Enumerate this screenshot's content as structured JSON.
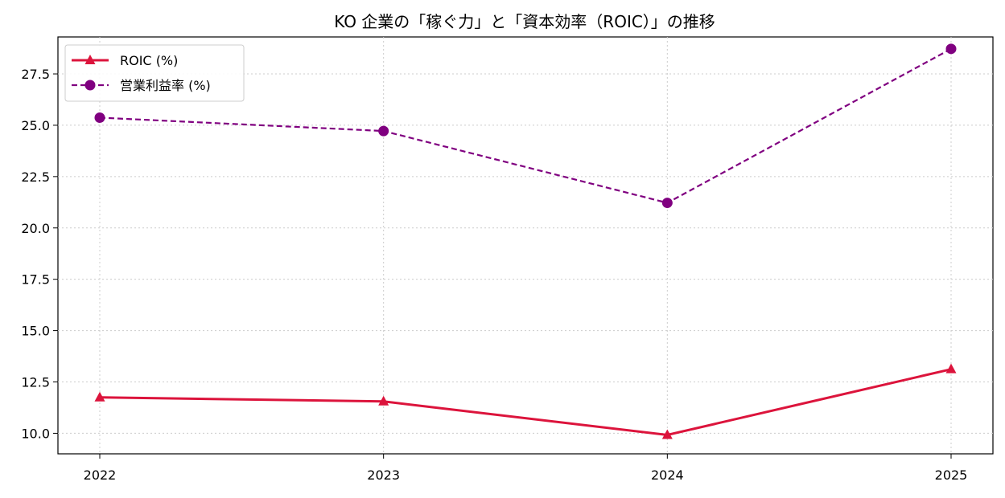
{
  "chart_data": {
    "type": "line",
    "title": "KO 企業の「稼ぐ力」と「資本効率（ROIC）」の推移",
    "xlabel": "",
    "ylabel": "",
    "x": [
      "2022",
      "2023",
      "2024",
      "2025"
    ],
    "ylim": [
      9.0,
      29.3
    ],
    "yticks": [
      10.0,
      12.5,
      15.0,
      17.5,
      20.0,
      22.5,
      25.0,
      27.5
    ],
    "ytick_labels": [
      "10.0",
      "12.5",
      "15.0",
      "17.5",
      "20.0",
      "22.5",
      "25.0",
      "27.5"
    ],
    "grid": true,
    "legend_position": "top-left",
    "series": [
      {
        "name": "ROIC (%)",
        "values": [
          11.75,
          11.55,
          9.92,
          13.12
        ],
        "color": "#dc143c",
        "style": "solid",
        "marker": "triangle"
      },
      {
        "name": "営業利益率 (%)",
        "values": [
          25.37,
          24.72,
          21.22,
          28.72
        ],
        "color": "#800080",
        "style": "dashed",
        "marker": "circle"
      }
    ]
  }
}
